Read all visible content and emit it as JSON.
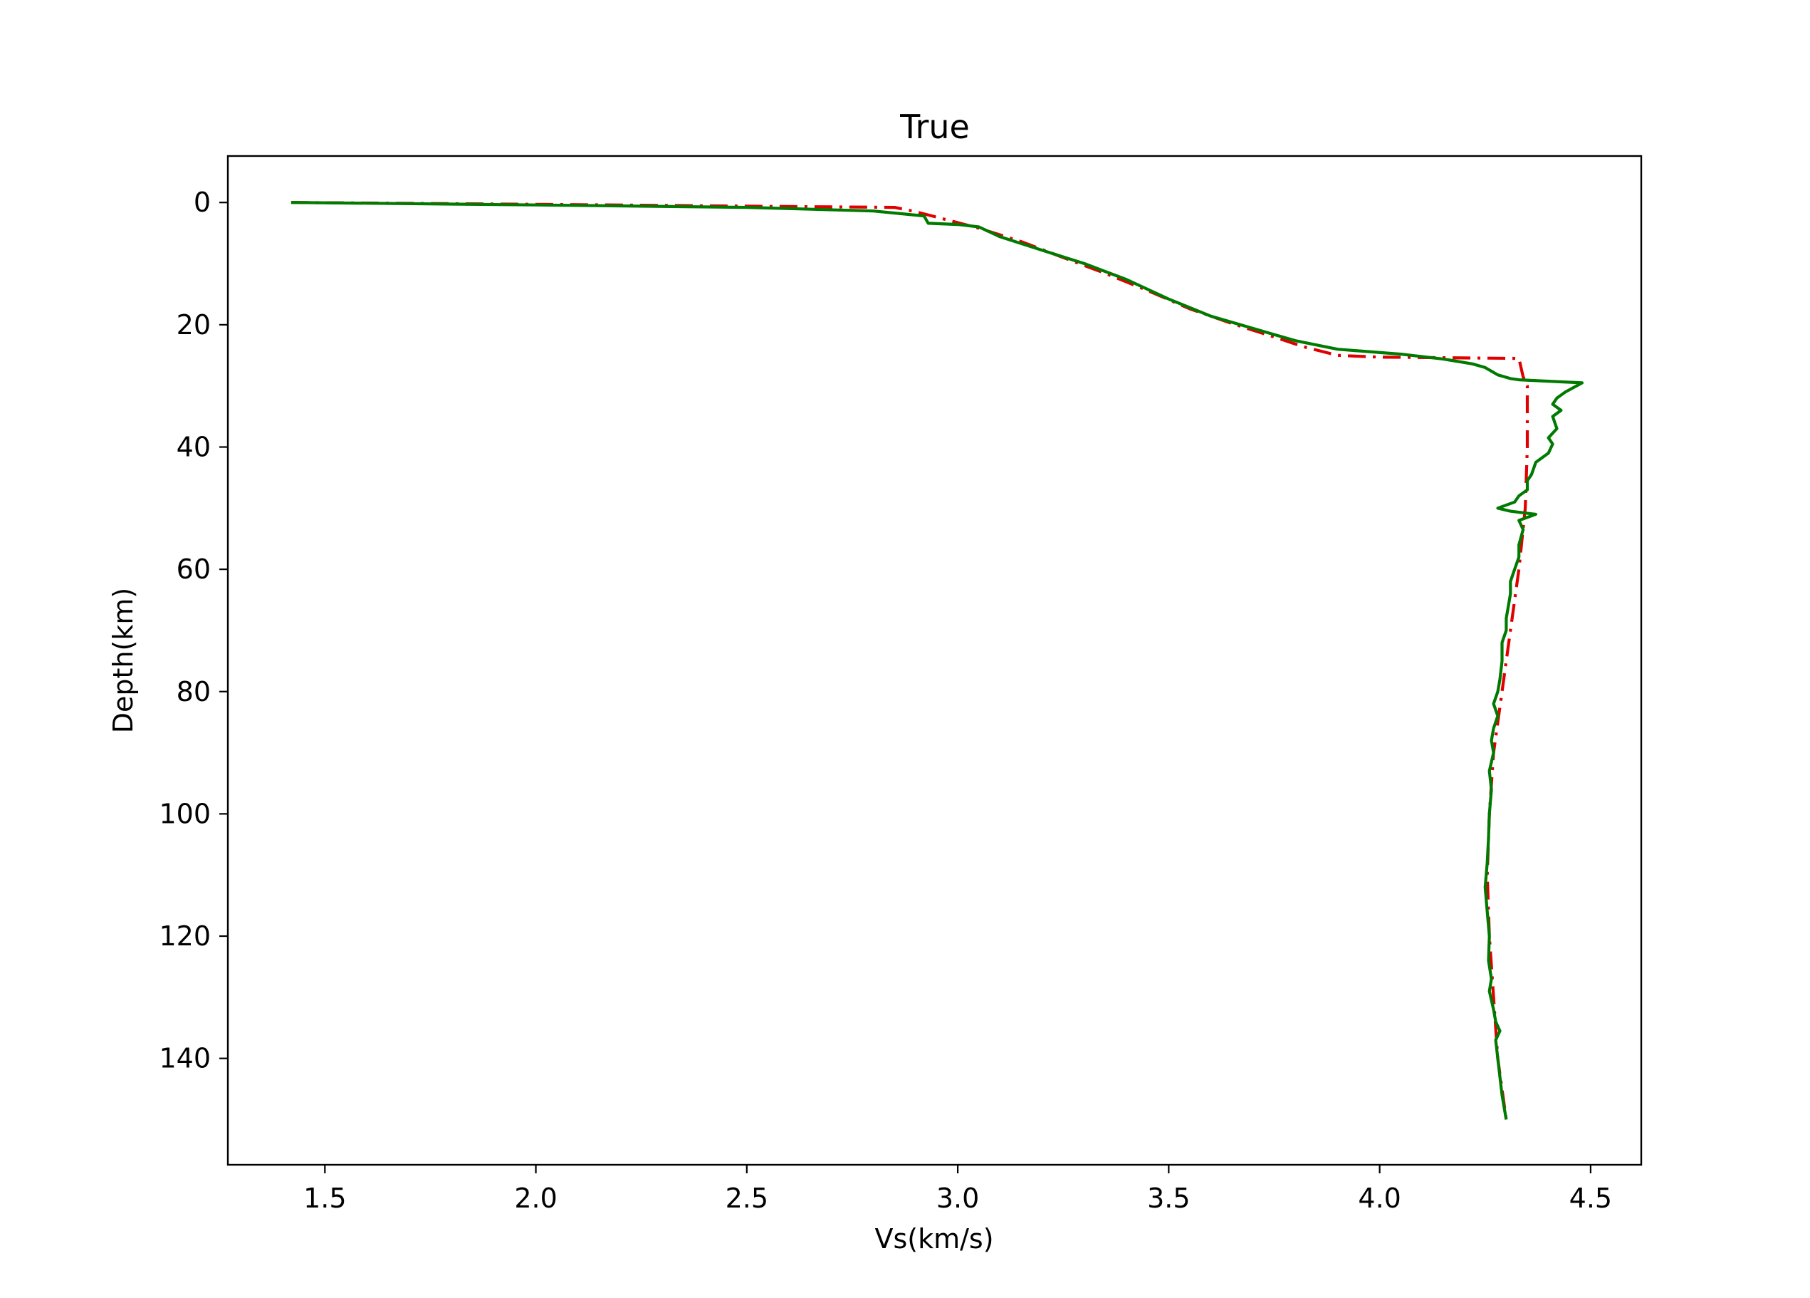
{
  "chart_data": {
    "type": "line",
    "title": "True",
    "xlabel": "Vs(km/s)",
    "ylabel": "Depth(km)",
    "xlim": [
      1.27,
      4.62
    ],
    "ylim": [
      157.4,
      -7.6
    ],
    "y_inverted": true,
    "grid": false,
    "legend": "none",
    "xticks": [
      {
        "value": 1.5,
        "label": "1.5"
      },
      {
        "value": 2.0,
        "label": "2.0"
      },
      {
        "value": 2.5,
        "label": "2.5"
      },
      {
        "value": 3.0,
        "label": "3.0"
      },
      {
        "value": 3.5,
        "label": "3.5"
      },
      {
        "value": 4.0,
        "label": "4.0"
      },
      {
        "value": 4.5,
        "label": "4.5"
      }
    ],
    "yticks": [
      {
        "value": 0,
        "label": "0"
      },
      {
        "value": 20,
        "label": "20"
      },
      {
        "value": 40,
        "label": "40"
      },
      {
        "value": 60,
        "label": "60"
      },
      {
        "value": 80,
        "label": "80"
      },
      {
        "value": 100,
        "label": "100"
      },
      {
        "value": 120,
        "label": "120"
      },
      {
        "value": 140,
        "label": "140"
      }
    ],
    "series": [
      {
        "color": "#e00000",
        "line_style": "dashdot",
        "points": [
          [
            1.42,
            0.0
          ],
          [
            2.0,
            0.3
          ],
          [
            2.5,
            0.6
          ],
          [
            2.85,
            0.8
          ],
          [
            2.9,
            1.5
          ],
          [
            2.95,
            2.4
          ],
          [
            3.05,
            4.2
          ],
          [
            3.15,
            6.4
          ],
          [
            3.25,
            9.0
          ],
          [
            3.35,
            11.6
          ],
          [
            3.45,
            14.4
          ],
          [
            3.55,
            17.4
          ],
          [
            3.65,
            19.8
          ],
          [
            3.75,
            22.0
          ],
          [
            3.82,
            23.6
          ],
          [
            3.9,
            25.0
          ],
          [
            4.0,
            25.3
          ],
          [
            4.33,
            25.5
          ],
          [
            4.34,
            28.5
          ],
          [
            4.35,
            30.0
          ],
          [
            4.35,
            40.0
          ],
          [
            4.345,
            50.0
          ],
          [
            4.33,
            60.0
          ],
          [
            4.31,
            70.0
          ],
          [
            4.29,
            80.0
          ],
          [
            4.27,
            90.0
          ],
          [
            4.26,
            100.0
          ],
          [
            4.255,
            110.0
          ],
          [
            4.26,
            120.0
          ],
          [
            4.27,
            130.0
          ],
          [
            4.28,
            140.0
          ],
          [
            4.3,
            150.0
          ]
        ]
      },
      {
        "color": "#007a00",
        "line_style": "solid",
        "points": [
          [
            1.42,
            0.0
          ],
          [
            2.0,
            0.4
          ],
          [
            2.5,
            0.8
          ],
          [
            2.8,
            1.4
          ],
          [
            2.92,
            2.2
          ],
          [
            2.93,
            3.4
          ],
          [
            3.0,
            3.6
          ],
          [
            3.05,
            4.0
          ],
          [
            3.1,
            5.6
          ],
          [
            3.2,
            7.8
          ],
          [
            3.3,
            10.0
          ],
          [
            3.4,
            12.6
          ],
          [
            3.5,
            15.8
          ],
          [
            3.6,
            18.6
          ],
          [
            3.7,
            20.6
          ],
          [
            3.8,
            22.6
          ],
          [
            3.9,
            24.0
          ],
          [
            4.05,
            24.8
          ],
          [
            4.15,
            25.6
          ],
          [
            4.22,
            26.4
          ],
          [
            4.25,
            27.0
          ],
          [
            4.28,
            28.2
          ],
          [
            4.31,
            28.8
          ],
          [
            4.33,
            29.0
          ],
          [
            4.48,
            29.5
          ],
          [
            4.44,
            31.0
          ],
          [
            4.42,
            32.0
          ],
          [
            4.41,
            33.0
          ],
          [
            4.43,
            34.0
          ],
          [
            4.41,
            35.0
          ],
          [
            4.42,
            37.0
          ],
          [
            4.4,
            38.5
          ],
          [
            4.41,
            39.5
          ],
          [
            4.4,
            41.0
          ],
          [
            4.37,
            42.5
          ],
          [
            4.36,
            44.5
          ],
          [
            4.35,
            45.5
          ],
          [
            4.35,
            47.0
          ],
          [
            4.33,
            48.0
          ],
          [
            4.32,
            49.0
          ],
          [
            4.28,
            50.0
          ],
          [
            4.31,
            50.5
          ],
          [
            4.37,
            51.0
          ],
          [
            4.33,
            52.0
          ],
          [
            4.34,
            53.5
          ],
          [
            4.33,
            56.0
          ],
          [
            4.33,
            58.0
          ],
          [
            4.32,
            60.0
          ],
          [
            4.31,
            62.0
          ],
          [
            4.31,
            64.0
          ],
          [
            4.305,
            66.0
          ],
          [
            4.3,
            68.0
          ],
          [
            4.3,
            70.0
          ],
          [
            4.29,
            72.0
          ],
          [
            4.29,
            75.0
          ],
          [
            4.285,
            78.0
          ],
          [
            4.28,
            80.0
          ],
          [
            4.27,
            82.0
          ],
          [
            4.28,
            84.0
          ],
          [
            4.27,
            86.0
          ],
          [
            4.265,
            88.0
          ],
          [
            4.27,
            90.0
          ],
          [
            4.26,
            93.0
          ],
          [
            4.265,
            96.0
          ],
          [
            4.26,
            100.0
          ],
          [
            4.258,
            104.0
          ],
          [
            4.255,
            108.0
          ],
          [
            4.25,
            112.0
          ],
          [
            4.255,
            116.0
          ],
          [
            4.26,
            120.0
          ],
          [
            4.258,
            124.0
          ],
          [
            4.265,
            127.0
          ],
          [
            4.26,
            129.0
          ],
          [
            4.27,
            132.0
          ],
          [
            4.275,
            134.0
          ],
          [
            4.285,
            135.5
          ],
          [
            4.275,
            137.0
          ],
          [
            4.28,
            140.0
          ],
          [
            4.285,
            143.0
          ],
          [
            4.29,
            146.0
          ],
          [
            4.295,
            148.0
          ],
          [
            4.3,
            150.0
          ]
        ]
      }
    ]
  }
}
